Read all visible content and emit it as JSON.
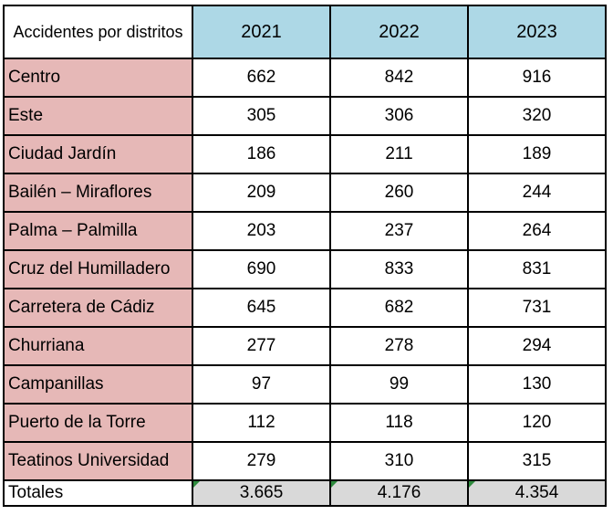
{
  "table": {
    "corner_label": "Accidentes por distritos",
    "years": [
      "2021",
      "2022",
      "2023"
    ],
    "rows": [
      {
        "district": "Centro",
        "values": [
          "662",
          "842",
          "916"
        ]
      },
      {
        "district": "Este",
        "values": [
          "305",
          "306",
          "320"
        ]
      },
      {
        "district": "Ciudad Jardín",
        "values": [
          "186",
          "211",
          "189"
        ]
      },
      {
        "district": "Bailén – Miraflores",
        "values": [
          "209",
          "260",
          "244"
        ]
      },
      {
        "district": "Palma – Palmilla",
        "values": [
          "203",
          "237",
          "264"
        ]
      },
      {
        "district": "Cruz del Humilladero",
        "values": [
          "690",
          "833",
          "831"
        ]
      },
      {
        "district": "Carretera de Cádiz",
        "values": [
          "645",
          "682",
          "731"
        ]
      },
      {
        "district": "Churriana",
        "values": [
          "277",
          "278",
          "294"
        ]
      },
      {
        "district": "Campanillas",
        "values": [
          "97",
          "99",
          "130"
        ]
      },
      {
        "district": "Puerto de la Torre",
        "values": [
          "112",
          "118",
          "120"
        ]
      },
      {
        "district": "Teatinos Universidad",
        "values": [
          "279",
          "310",
          "315"
        ]
      }
    ],
    "totals_label": "Totales",
    "totals": [
      "3.665",
      "4.176",
      "4.354"
    ]
  },
  "colors": {
    "header_blue": "#add8e6",
    "district_pink": "#e6b8b7",
    "totals_gray": "#d9d9d9",
    "indicator_green": "#2e8b3e"
  }
}
